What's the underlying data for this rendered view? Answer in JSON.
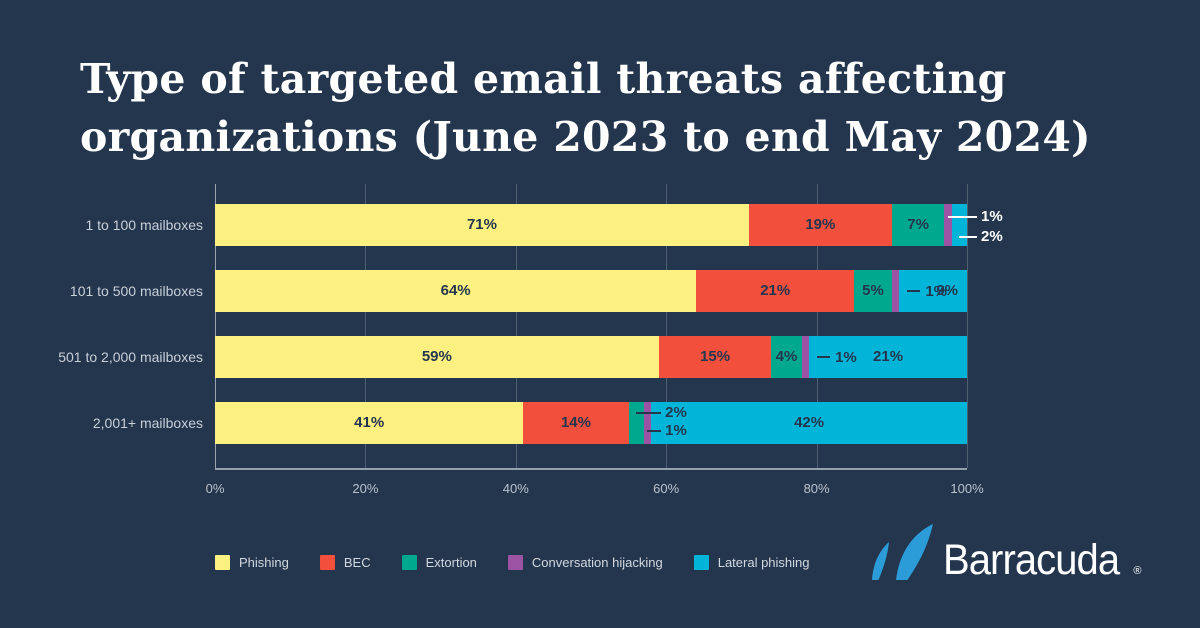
{
  "title": {
    "line1": "Type of targeted email threats affecting",
    "line2": "organizations (June 2023 to end May 2024)"
  },
  "theme": {
    "background": "#24364E",
    "title_color": "#FFFFFF",
    "label_dark": "#24364E",
    "label_light": "#C7CFD8",
    "axis_line": "#93A0AE",
    "logo_blue": "#2B9CD8"
  },
  "chart_data": {
    "type": "bar",
    "orientation": "horizontal",
    "stacked": true,
    "title": "Type of targeted email threats affecting organizations (June 2023 to end May 2024)",
    "categories": [
      "1 to 100 mailboxes",
      "101 to 500 mailboxes",
      "501 to 2,000 mailboxes",
      "2,001+ mailboxes"
    ],
    "series": [
      {
        "name": "Phishing",
        "color": "#FCF180",
        "values": [
          71,
          64,
          59,
          41
        ]
      },
      {
        "name": "BEC",
        "color": "#F2503C",
        "values": [
          19,
          21,
          15,
          14
        ]
      },
      {
        "name": "Extortion",
        "color": "#00A98E",
        "values": [
          7,
          5,
          4,
          2
        ]
      },
      {
        "name": "Conversation hijacking",
        "color": "#9C53A4",
        "values": [
          1,
          1,
          1,
          1
        ]
      },
      {
        "name": "Lateral phishing",
        "color": "#00B5D8",
        "values": [
          2,
          9,
          21,
          42
        ]
      }
    ],
    "x_ticks": [
      "0%",
      "20%",
      "40%",
      "60%",
      "80%",
      "100%"
    ],
    "xlim": [
      0,
      100
    ],
    "grid": "vertical",
    "legend_position": "bottom",
    "label_placements": [
      [
        "inside",
        "inside",
        "inside",
        "ext-right",
        "ext-right"
      ],
      [
        "inside",
        "inside",
        "inside",
        "dash-next",
        "inside"
      ],
      [
        "inside",
        "inside",
        "inside",
        "dash-next",
        "inside"
      ],
      [
        "inside",
        "inside",
        "callout",
        "callout",
        "inside"
      ]
    ]
  },
  "logo": {
    "text": "Barracuda",
    "reg": "®"
  }
}
